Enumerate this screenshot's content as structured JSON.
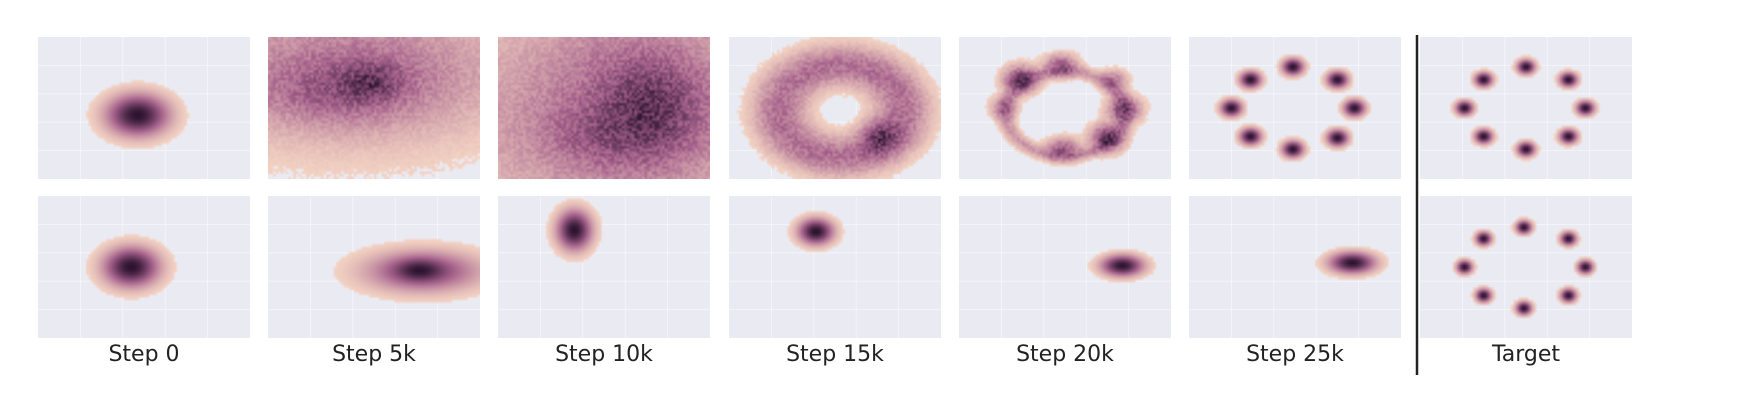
{
  "chart_data": {
    "type": "density",
    "columns": [
      "Step 0",
      "Step 5k",
      "Step 10k",
      "Step 15k",
      "Step 20k",
      "Step 25k",
      "Target"
    ],
    "colors": {
      "panel": "#eaeaf2",
      "low": "#f3d3c3",
      "mid": "#a7638d",
      "high": "#2d1330"
    },
    "rows": [
      {
        "panels": [
          {
            "blobs": [
              {
                "x": 0.47,
                "y": 0.55,
                "sx": 0.09,
                "sy": 0.09,
                "w": 1
              }
            ]
          },
          {
            "blobs": [
              {
                "x": 0.32,
                "y": 0.18,
                "sx": 0.6,
                "sy": 0.4,
                "w": 0.45
              },
              {
                "x": 0.45,
                "y": 0.28,
                "sx": 0.4,
                "sy": 0.26,
                "w": 0.55
              },
              {
                "x": 0.49,
                "y": 0.32,
                "sx": 0.1,
                "sy": 0.09,
                "w": 0.75
              },
              {
                "x": 0.3,
                "y": 0.4,
                "sx": 0.22,
                "sy": 0.14,
                "w": 0.45
              }
            ]
          },
          {
            "blobs": [
              {
                "x": 0.48,
                "y": 0.55,
                "sx": 0.7,
                "sy": 0.55,
                "w": 0.45
              },
              {
                "x": 0.65,
                "y": 0.45,
                "sx": 0.35,
                "sy": 0.55,
                "w": 0.55
              },
              {
                "x": 0.73,
                "y": 0.45,
                "sx": 0.16,
                "sy": 0.2,
                "w": 0.75
              },
              {
                "x": 0.56,
                "y": 0.7,
                "sx": 0.22,
                "sy": 0.14,
                "w": 0.45
              }
            ]
          },
          {
            "ring": {
              "cx": 0.53,
              "cy": 0.52,
              "rx": 0.29,
              "ry": 0.32,
              "thickness": 0.085,
              "w": 0.7
            },
            "blobs": [
              {
                "x": 0.71,
                "y": 0.7,
                "sx": 0.06,
                "sy": 0.08,
                "w": 0.8
              }
            ]
          },
          {
            "ring": {
              "cx": 0.5,
              "cy": 0.54,
              "rx": 0.28,
              "ry": 0.3,
              "thickness": 0.025,
              "w": 0.35
            },
            "blobs": [
              {
                "x": 0.29,
                "y": 0.3,
                "sx": 0.05,
                "sy": 0.06,
                "w": 1
              },
              {
                "x": 0.48,
                "y": 0.2,
                "sx": 0.05,
                "sy": 0.05,
                "w": 0.7
              },
              {
                "x": 0.73,
                "y": 0.31,
                "sx": 0.04,
                "sy": 0.05,
                "w": 0.5
              },
              {
                "x": 0.78,
                "y": 0.51,
                "sx": 0.05,
                "sy": 0.06,
                "w": 0.8
              },
              {
                "x": 0.7,
                "y": 0.71,
                "sx": 0.05,
                "sy": 0.06,
                "w": 1
              },
              {
                "x": 0.49,
                "y": 0.79,
                "sx": 0.05,
                "sy": 0.05,
                "w": 0.7
              },
              {
                "x": 0.21,
                "y": 0.5,
                "sx": 0.04,
                "sy": 0.05,
                "w": 0.45
              }
            ]
          },
          {
            "blobs": [
              {
                "x": 0.29,
                "y": 0.3,
                "sx": 0.03,
                "sy": 0.035,
                "w": 1
              },
              {
                "x": 0.49,
                "y": 0.21,
                "sx": 0.03,
                "sy": 0.035,
                "w": 1
              },
              {
                "x": 0.7,
                "y": 0.3,
                "sx": 0.03,
                "sy": 0.035,
                "w": 1
              },
              {
                "x": 0.78,
                "y": 0.5,
                "sx": 0.03,
                "sy": 0.035,
                "w": 1
              },
              {
                "x": 0.7,
                "y": 0.71,
                "sx": 0.03,
                "sy": 0.035,
                "w": 1
              },
              {
                "x": 0.49,
                "y": 0.79,
                "sx": 0.03,
                "sy": 0.035,
                "w": 1
              },
              {
                "x": 0.29,
                "y": 0.7,
                "sx": 0.03,
                "sy": 0.035,
                "w": 1
              },
              {
                "x": 0.2,
                "y": 0.5,
                "sx": 0.03,
                "sy": 0.035,
                "w": 1
              }
            ]
          },
          {
            "blobs": [
              {
                "x": 0.3,
                "y": 0.3,
                "sx": 0.025,
                "sy": 0.03,
                "w": 1
              },
              {
                "x": 0.5,
                "y": 0.21,
                "sx": 0.025,
                "sy": 0.03,
                "w": 1
              },
              {
                "x": 0.7,
                "y": 0.3,
                "sx": 0.025,
                "sy": 0.03,
                "w": 1
              },
              {
                "x": 0.78,
                "y": 0.5,
                "sx": 0.025,
                "sy": 0.03,
                "w": 1
              },
              {
                "x": 0.7,
                "y": 0.7,
                "sx": 0.025,
                "sy": 0.03,
                "w": 1
              },
              {
                "x": 0.5,
                "y": 0.79,
                "sx": 0.025,
                "sy": 0.03,
                "w": 1
              },
              {
                "x": 0.3,
                "y": 0.7,
                "sx": 0.025,
                "sy": 0.03,
                "w": 1
              },
              {
                "x": 0.21,
                "y": 0.5,
                "sx": 0.025,
                "sy": 0.03,
                "w": 1
              }
            ]
          }
        ]
      },
      {
        "panels": [
          {
            "blobs": [
              {
                "x": 0.44,
                "y": 0.5,
                "sx": 0.08,
                "sy": 0.085,
                "w": 1
              }
            ]
          },
          {
            "blobs": [
              {
                "x": 0.73,
                "y": 0.53,
                "sx": 0.17,
                "sy": 0.09,
                "w": 1
              },
              {
                "x": 0.71,
                "y": 0.52,
                "sx": 0.07,
                "sy": 0.05,
                "w": 0.6
              }
            ]
          },
          {
            "blobs": [
              {
                "x": 0.36,
                "y": 0.24,
                "sx": 0.05,
                "sy": 0.085,
                "w": 1
              }
            ]
          },
          {
            "blobs": [
              {
                "x": 0.41,
                "y": 0.25,
                "sx": 0.05,
                "sy": 0.055,
                "w": 1
              }
            ]
          },
          {
            "blobs": [
              {
                "x": 0.77,
                "y": 0.49,
                "sx": 0.06,
                "sy": 0.045,
                "w": 1
              }
            ]
          },
          {
            "blobs": [
              {
                "x": 0.77,
                "y": 0.47,
                "sx": 0.065,
                "sy": 0.045,
                "w": 1
              }
            ]
          },
          {
            "blobs": [
              {
                "x": 0.3,
                "y": 0.3,
                "sx": 0.022,
                "sy": 0.028,
                "w": 1
              },
              {
                "x": 0.49,
                "y": 0.22,
                "sx": 0.022,
                "sy": 0.028,
                "w": 1
              },
              {
                "x": 0.7,
                "y": 0.3,
                "sx": 0.022,
                "sy": 0.028,
                "w": 1
              },
              {
                "x": 0.78,
                "y": 0.5,
                "sx": 0.022,
                "sy": 0.028,
                "w": 1
              },
              {
                "x": 0.7,
                "y": 0.7,
                "sx": 0.022,
                "sy": 0.028,
                "w": 1
              },
              {
                "x": 0.49,
                "y": 0.79,
                "sx": 0.022,
                "sy": 0.028,
                "w": 1
              },
              {
                "x": 0.3,
                "y": 0.7,
                "sx": 0.022,
                "sy": 0.028,
                "w": 1
              },
              {
                "x": 0.21,
                "y": 0.5,
                "sx": 0.022,
                "sy": 0.028,
                "w": 1
              }
            ]
          }
        ]
      }
    ]
  }
}
